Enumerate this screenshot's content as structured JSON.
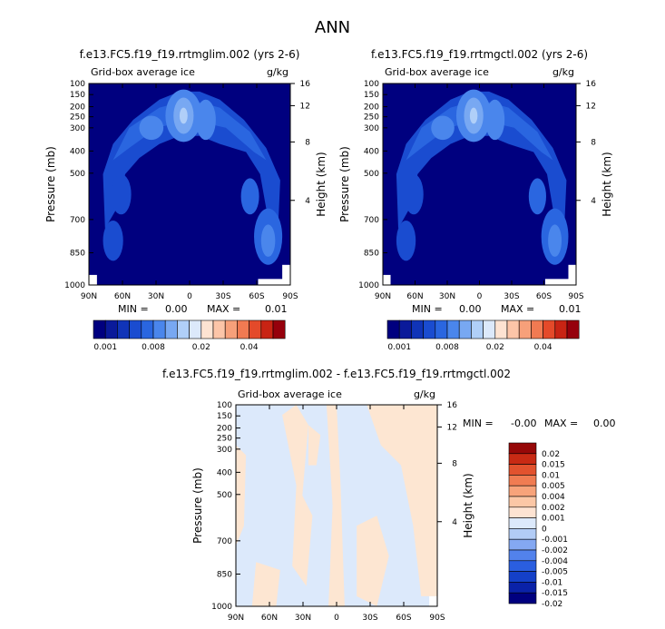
{
  "figure": {
    "title": "ANN"
  },
  "colors": {
    "ice_scale": [
      "#00007f",
      "#0a1a9a",
      "#1034b8",
      "#1a4cd0",
      "#2a66e0",
      "#4a86ec",
      "#78a8f2",
      "#b0cff8",
      "#dce9fb",
      "#fde3d2",
      "#fcc5a8",
      "#f7a07a",
      "#f17a52",
      "#e44a2a",
      "#c82414",
      "#96000c"
    ],
    "diff_scale": [
      "#00007f",
      "#0a22a8",
      "#1440c8",
      "#2a5ee0",
      "#5282ec",
      "#84a8f2",
      "#b2ccf6",
      "#dce9fb",
      "#fde3d2",
      "#fbc7a6",
      "#f7a37a",
      "#f07c52",
      "#e2522e",
      "#c82a14",
      "#960808"
    ],
    "ocean": "#00007f",
    "diff_pos": "#fde6d2",
    "diff_neg": "#dce9fb"
  },
  "chart_data": [
    {
      "type": "contour",
      "title": "f.e13.FC5.f19_f19.rrtmglim.002 (yrs 2-6)",
      "subtitle_left": "Grid-box average ice",
      "subtitle_right": "g/kg",
      "ylabel": "Pressure (mb)",
      "y2label": "Height (km)",
      "xticks": [
        "90N",
        "60N",
        "30N",
        "0",
        "30S",
        "60S",
        "90S"
      ],
      "yticks": [
        "100",
        "150",
        "200",
        "250",
        "300",
        "400",
        "500",
        "700",
        "850",
        "1000"
      ],
      "y2ticks": [
        "16",
        "12",
        "8",
        "4"
      ],
      "min_label": "MIN =",
      "min_value": "0.00",
      "max_label": "MAX =",
      "max_value": "0.01",
      "colorbar_labels": [
        "0.001",
        "0.008",
        "0.02",
        "0.04"
      ]
    },
    {
      "type": "contour",
      "title": "f.e13.FC5.f19_f19.rrtmgctl.002 (yrs 2-6)",
      "subtitle_left": "Grid-box average ice",
      "subtitle_right": "g/kg",
      "ylabel": "Pressure (mb)",
      "y2label": "Height (km)",
      "xticks": [
        "90N",
        "60N",
        "30N",
        "0",
        "30S",
        "60S",
        "90S"
      ],
      "yticks": [
        "100",
        "150",
        "200",
        "250",
        "300",
        "400",
        "500",
        "700",
        "850",
        "1000"
      ],
      "y2ticks": [
        "16",
        "12",
        "8",
        "4"
      ],
      "min_label": "MIN =",
      "min_value": "0.00",
      "max_label": "MAX =",
      "max_value": "0.01",
      "colorbar_labels": [
        "0.001",
        "0.008",
        "0.02",
        "0.04"
      ]
    },
    {
      "type": "contour",
      "title": "f.e13.FC5.f19_f19.rrtmglim.002 - f.e13.FC5.f19_f19.rrtmgctl.002",
      "subtitle_left": "Grid-box average ice",
      "subtitle_right": "g/kg",
      "ylabel": "Pressure (mb)",
      "y2label": "Height (km)",
      "xticks": [
        "90N",
        "60N",
        "30N",
        "0",
        "30S",
        "60S",
        "90S"
      ],
      "yticks": [
        "100",
        "150",
        "200",
        "250",
        "300",
        "400",
        "500",
        "700",
        "850",
        "1000"
      ],
      "y2ticks": [
        "16",
        "12",
        "8",
        "4"
      ],
      "min_label": "MIN =",
      "min_value": "-0.00",
      "max_label": "MAX =",
      "max_value": "0.00",
      "colorbar_labels": [
        "0.02",
        "0.015",
        "0.01",
        "0.005",
        "0.004",
        "0.002",
        "0.001",
        "0",
        "-0.001",
        "-0.002",
        "-0.004",
        "-0.005",
        "-0.01",
        "-0.015",
        "-0.02"
      ]
    }
  ]
}
